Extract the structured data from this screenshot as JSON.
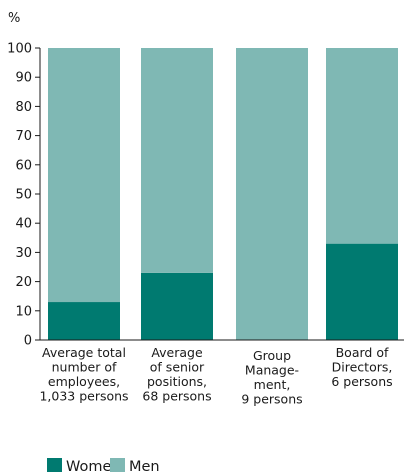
{
  "chart_data": {
    "type": "bar",
    "stacked": true,
    "unit_label": "%",
    "title": "",
    "xlabel": "",
    "ylabel": "",
    "ylim": [
      0,
      100
    ],
    "yticks": [
      0,
      10,
      20,
      30,
      40,
      50,
      60,
      70,
      80,
      90,
      100
    ],
    "grid": false,
    "legend_position": "bottom-left",
    "categories": [
      [
        "Average total",
        "number of",
        "employees,",
        "1,033 persons"
      ],
      [
        "Average",
        "of senior",
        "positions,",
        "68 persons"
      ],
      [
        "Group",
        "Manage-",
        "ment,",
        "9 persons"
      ],
      [
        "Board of",
        "Directors,",
        "6 persons"
      ]
    ],
    "series": [
      {
        "name": "Women",
        "color": "#007a70",
        "values": [
          13,
          23,
          0,
          33
        ]
      },
      {
        "name": "Men",
        "color": "#7fb8b4",
        "values": [
          87,
          77,
          100,
          67
        ]
      }
    ]
  }
}
